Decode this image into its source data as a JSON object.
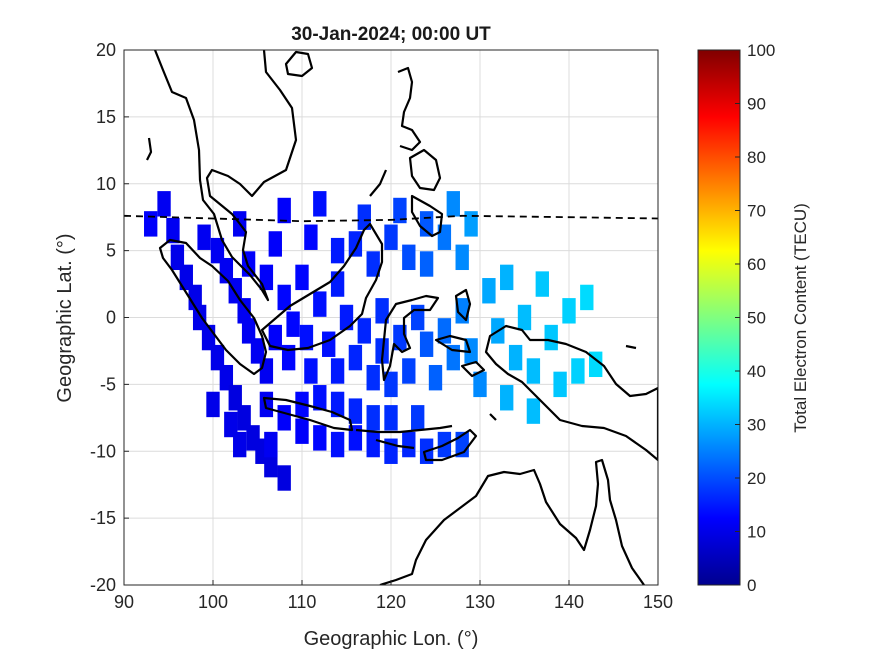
{
  "chart_data": {
    "type": "heatmap",
    "title": "30-Jan-2024; 00:00 UT",
    "xlabel": "Geographic Lon. (°)",
    "ylabel": "Geographic Lat. (°)",
    "xlim": [
      90,
      150
    ],
    "ylim": [
      -20,
      20
    ],
    "xticks": [
      "90",
      "100",
      "110",
      "120",
      "130",
      "140",
      "150"
    ],
    "yticks": [
      "20",
      "15",
      "10",
      "5",
      "0",
      "-5",
      "-10",
      "-15",
      "-20"
    ],
    "grid": true,
    "colorbar": {
      "label": "Total Electron Content (TECU)",
      "range": [
        0,
        100
      ],
      "ticks": [
        "0",
        "10",
        "20",
        "30",
        "40",
        "50",
        "60",
        "70",
        "80",
        "90",
        "100"
      ],
      "colormap": "jet"
    },
    "magnetic_equator": {
      "style": "dashed",
      "points": [
        [
          90,
          7.6
        ],
        [
          100,
          7.4
        ],
        [
          110,
          7.2
        ],
        [
          120,
          7.3
        ],
        [
          128,
          7.6
        ],
        [
          140,
          7.5
        ],
        [
          150,
          7.4
        ]
      ]
    },
    "tec_cells": [
      {
        "lon": 93,
        "lat": 7.0,
        "tec": 12
      },
      {
        "lon": 94.5,
        "lat": 8.5,
        "tec": 11
      },
      {
        "lon": 95.5,
        "lat": 6.5,
        "tec": 11
      },
      {
        "lon": 96,
        "lat": 4.5,
        "tec": 10
      },
      {
        "lon": 97,
        "lat": 3,
        "tec": 10
      },
      {
        "lon": 98,
        "lat": 1.5,
        "tec": 10
      },
      {
        "lon": 98.5,
        "lat": 0,
        "tec": 10
      },
      {
        "lon": 99.5,
        "lat": -1.5,
        "tec": 10
      },
      {
        "lon": 100.5,
        "lat": -3,
        "tec": 10
      },
      {
        "lon": 101.5,
        "lat": -4.5,
        "tec": 10
      },
      {
        "lon": 102.5,
        "lat": -6,
        "tec": 9
      },
      {
        "lon": 103.5,
        "lat": -7.5,
        "tec": 9
      },
      {
        "lon": 104.5,
        "lat": -9,
        "tec": 9
      },
      {
        "lon": 105.5,
        "lat": -10,
        "tec": 9
      },
      {
        "lon": 106.5,
        "lat": -11,
        "tec": 9
      },
      {
        "lon": 108,
        "lat": -12,
        "tec": 9
      },
      {
        "lon": 99,
        "lat": 6,
        "tec": 11
      },
      {
        "lon": 100.5,
        "lat": 5,
        "tec": 11
      },
      {
        "lon": 101.5,
        "lat": 3.5,
        "tec": 11
      },
      {
        "lon": 102.5,
        "lat": 2,
        "tec": 11
      },
      {
        "lon": 103.5,
        "lat": 0.5,
        "tec": 11
      },
      {
        "lon": 104,
        "lat": -1,
        "tec": 11
      },
      {
        "lon": 105,
        "lat": -2.5,
        "tec": 11
      },
      {
        "lon": 106,
        "lat": -4,
        "tec": 11
      },
      {
        "lon": 100,
        "lat": -6.5,
        "tec": 10
      },
      {
        "lon": 102,
        "lat": -8,
        "tec": 10
      },
      {
        "lon": 103,
        "lat": -9.5,
        "tec": 10
      },
      {
        "lon": 104,
        "lat": 4,
        "tec": 12
      },
      {
        "lon": 106,
        "lat": 3,
        "tec": 12
      },
      {
        "lon": 108,
        "lat": 1.5,
        "tec": 13
      },
      {
        "lon": 110,
        "lat": 3,
        "tec": 13
      },
      {
        "lon": 109,
        "lat": -0.5,
        "tec": 13
      },
      {
        "lon": 107,
        "lat": -1.5,
        "tec": 12
      },
      {
        "lon": 108.5,
        "lat": -3,
        "tec": 13
      },
      {
        "lon": 110.5,
        "lat": -1.5,
        "tec": 14
      },
      {
        "lon": 112,
        "lat": 1,
        "tec": 14
      },
      {
        "lon": 114,
        "lat": 2.5,
        "tec": 15
      },
      {
        "lon": 115,
        "lat": 0,
        "tec": 15
      },
      {
        "lon": 113,
        "lat": -2,
        "tec": 14
      },
      {
        "lon": 111,
        "lat": -4,
        "tec": 14
      },
      {
        "lon": 107,
        "lat": 5.5,
        "tec": 12
      },
      {
        "lon": 111,
        "lat": 6,
        "tec": 13
      },
      {
        "lon": 114,
        "lat": 5,
        "tec": 15
      },
      {
        "lon": 106,
        "lat": -6.5,
        "tec": 11
      },
      {
        "lon": 108,
        "lat": -7.5,
        "tec": 12
      },
      {
        "lon": 110,
        "lat": -8.5,
        "tec": 12
      },
      {
        "lon": 112,
        "lat": -9,
        "tec": 13
      },
      {
        "lon": 114,
        "lat": -9.5,
        "tec": 14
      },
      {
        "lon": 116,
        "lat": -9,
        "tec": 14
      },
      {
        "lon": 118,
        "lat": -9.5,
        "tec": 15
      },
      {
        "lon": 120,
        "lat": -10,
        "tec": 16
      },
      {
        "lon": 122,
        "lat": -9.5,
        "tec": 16
      },
      {
        "lon": 124,
        "lat": -10,
        "tec": 17
      },
      {
        "lon": 126,
        "lat": -9.5,
        "tec": 18
      },
      {
        "lon": 128,
        "lat": -9.5,
        "tec": 19
      },
      {
        "lon": 110,
        "lat": -6.5,
        "tec": 13
      },
      {
        "lon": 112,
        "lat": -6,
        "tec": 14
      },
      {
        "lon": 114,
        "lat": -6.5,
        "tec": 15
      },
      {
        "lon": 116,
        "lat": -7,
        "tec": 16
      },
      {
        "lon": 118,
        "lat": -7.5,
        "tec": 17
      },
      {
        "lon": 120,
        "lat": -7.5,
        "tec": 17
      },
      {
        "lon": 123,
        "lat": -7.5,
        "tec": 18
      },
      {
        "lon": 116,
        "lat": -3,
        "tec": 16
      },
      {
        "lon": 118,
        "lat": -4.5,
        "tec": 17
      },
      {
        "lon": 120,
        "lat": -5,
        "tec": 18
      },
      {
        "lon": 117,
        "lat": -1,
        "tec": 16
      },
      {
        "lon": 119,
        "lat": 0.5,
        "tec": 17
      },
      {
        "lon": 121,
        "lat": -1.5,
        "tec": 18
      },
      {
        "lon": 122,
        "lat": -4,
        "tec": 19
      },
      {
        "lon": 123,
        "lat": 0,
        "tec": 19
      },
      {
        "lon": 124,
        "lat": -2,
        "tec": 21
      },
      {
        "lon": 125,
        "lat": -4.5,
        "tec": 22
      },
      {
        "lon": 126,
        "lat": -1,
        "tec": 23
      },
      {
        "lon": 127,
        "lat": -3,
        "tec": 24
      },
      {
        "lon": 128,
        "lat": 0.5,
        "tec": 25
      },
      {
        "lon": 129,
        "lat": -2.5,
        "tec": 26
      },
      {
        "lon": 130,
        "lat": -5,
        "tec": 26
      },
      {
        "lon": 116,
        "lat": 5.5,
        "tec": 16
      },
      {
        "lon": 118,
        "lat": 4,
        "tec": 17
      },
      {
        "lon": 117,
        "lat": 7.5,
        "tec": 17
      },
      {
        "lon": 120,
        "lat": 6,
        "tec": 18
      },
      {
        "lon": 122,
        "lat": 4.5,
        "tec": 20
      },
      {
        "lon": 121,
        "lat": 8,
        "tec": 19
      },
      {
        "lon": 124,
        "lat": 7,
        "tec": 21
      },
      {
        "lon": 124,
        "lat": 4,
        "tec": 22
      },
      {
        "lon": 126,
        "lat": 6,
        "tec": 24
      },
      {
        "lon": 127,
        "lat": 8.5,
        "tec": 26
      },
      {
        "lon": 128,
        "lat": 4.5,
        "tec": 26
      },
      {
        "lon": 129,
        "lat": 7,
        "tec": 28
      },
      {
        "lon": 131,
        "lat": 2,
        "tec": 29
      },
      {
        "lon": 132,
        "lat": -1,
        "tec": 29
      },
      {
        "lon": 133,
        "lat": 3,
        "tec": 30
      },
      {
        "lon": 134,
        "lat": -3,
        "tec": 30
      },
      {
        "lon": 135,
        "lat": 0,
        "tec": 31
      },
      {
        "lon": 136,
        "lat": -4,
        "tec": 31
      },
      {
        "lon": 137,
        "lat": 2.5,
        "tec": 32
      },
      {
        "lon": 138,
        "lat": -1.5,
        "tec": 32
      },
      {
        "lon": 139,
        "lat": -5,
        "tec": 32
      },
      {
        "lon": 140,
        "lat": 0.5,
        "tec": 33
      },
      {
        "lon": 141,
        "lat": -4,
        "tec": 33
      },
      {
        "lon": 142,
        "lat": 1.5,
        "tec": 34
      },
      {
        "lon": 143,
        "lat": -3.5,
        "tec": 34
      },
      {
        "lon": 133,
        "lat": -6,
        "tec": 30
      },
      {
        "lon": 136,
        "lat": -7,
        "tec": 31
      },
      {
        "lon": 112,
        "lat": 8.5,
        "tec": 14
      },
      {
        "lon": 108,
        "lat": 8,
        "tec": 12
      },
      {
        "lon": 103,
        "lat": 7,
        "tec": 11
      },
      {
        "lon": 106.5,
        "lat": -9.5,
        "tec": 11
      },
      {
        "lon": 114,
        "lat": -4,
        "tec": 15
      },
      {
        "lon": 119,
        "lat": -2.5,
        "tec": 17
      }
    ]
  }
}
